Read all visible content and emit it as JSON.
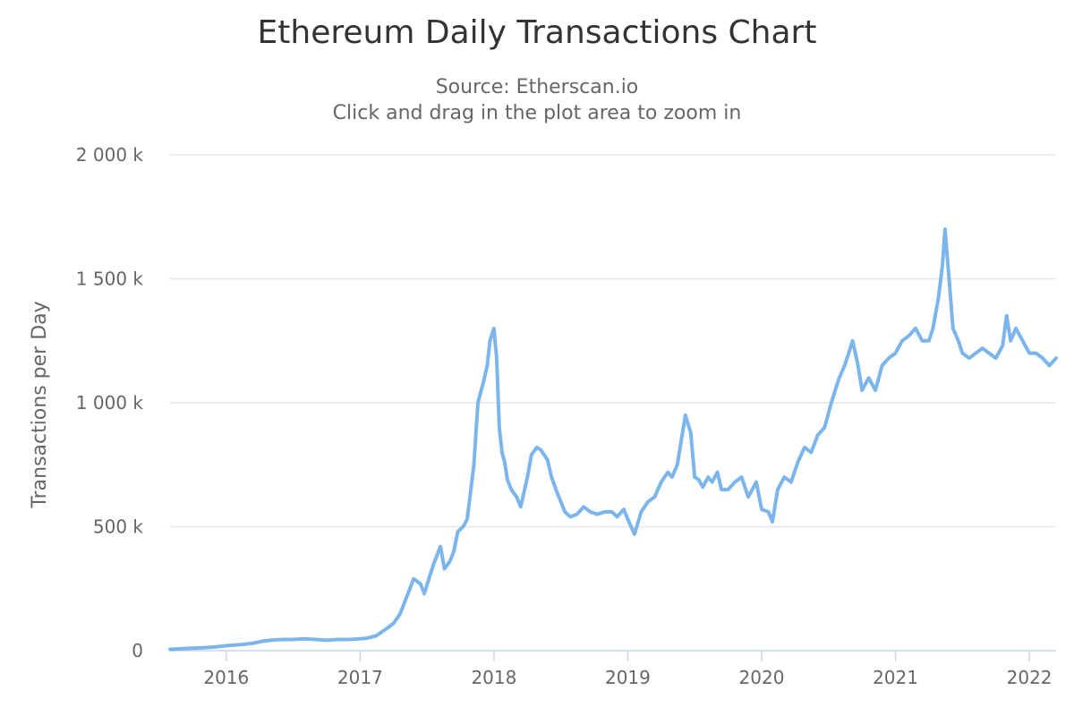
{
  "chart_data": {
    "type": "line",
    "title": "Ethereum Daily Transactions Chart",
    "subtitle_lines": [
      "Source: Etherscan.io",
      "Click and drag in the plot area to zoom in"
    ],
    "xlabel": "",
    "ylabel": "Transactions per Day",
    "xlim": [
      2015.58,
      2022.2
    ],
    "ylim": [
      0,
      2000000
    ],
    "y_ticks": [
      {
        "value": 0,
        "label": "0"
      },
      {
        "value": 500000,
        "label": "500 k"
      },
      {
        "value": 1000000,
        "label": "1 000 k"
      },
      {
        "value": 1500000,
        "label": "1 500 k"
      },
      {
        "value": 2000000,
        "label": "2 000 k"
      }
    ],
    "x_ticks": [
      {
        "value": 2016,
        "label": "2016"
      },
      {
        "value": 2017,
        "label": "2017"
      },
      {
        "value": 2018,
        "label": "2018"
      },
      {
        "value": 2019,
        "label": "2019"
      },
      {
        "value": 2020,
        "label": "2020"
      },
      {
        "value": 2021,
        "label": "2021"
      },
      {
        "value": 2022,
        "label": "2022"
      }
    ],
    "grid": true,
    "legend": "none",
    "series": [
      {
        "color": "#7cb5ec",
        "x": [
          2015.58,
          2015.67,
          2015.75,
          2015.83,
          2015.92,
          2016.0,
          2016.05,
          2016.12,
          2016.2,
          2016.27,
          2016.33,
          2016.42,
          2016.5,
          2016.58,
          2016.67,
          2016.75,
          2016.83,
          2016.92,
          2017.0,
          2017.05,
          2017.12,
          2017.2,
          2017.25,
          2017.3,
          2017.35,
          2017.4,
          2017.45,
          2017.48,
          2017.52,
          2017.55,
          2017.6,
          2017.63,
          2017.67,
          2017.7,
          2017.73,
          2017.77,
          2017.8,
          2017.85,
          2017.88,
          2017.92,
          2017.95,
          2017.97,
          2018.0,
          2018.02,
          2018.04,
          2018.06,
          2018.08,
          2018.1,
          2018.13,
          2018.17,
          2018.2,
          2018.25,
          2018.28,
          2018.32,
          2018.35,
          2018.4,
          2018.43,
          2018.47,
          2018.5,
          2018.53,
          2018.57,
          2018.62,
          2018.67,
          2018.72,
          2018.77,
          2018.83,
          2018.88,
          2018.92,
          2018.97,
          2019.0,
          2019.05,
          2019.1,
          2019.15,
          2019.2,
          2019.25,
          2019.3,
          2019.33,
          2019.37,
          2019.4,
          2019.43,
          2019.47,
          2019.5,
          2019.53,
          2019.56,
          2019.6,
          2019.63,
          2019.67,
          2019.7,
          2019.75,
          2019.8,
          2019.85,
          2019.9,
          2019.93,
          2019.96,
          2020.0,
          2020.05,
          2020.08,
          2020.12,
          2020.17,
          2020.22,
          2020.27,
          2020.32,
          2020.37,
          2020.42,
          2020.47,
          2020.52,
          2020.55,
          2020.58,
          2020.62,
          2020.65,
          2020.68,
          2020.72,
          2020.75,
          2020.8,
          2020.85,
          2020.9,
          2020.95,
          2021.0,
          2021.05,
          2021.1,
          2021.15,
          2021.2,
          2021.25,
          2021.28,
          2021.32,
          2021.35,
          2021.37,
          2021.4,
          2021.43,
          2021.47,
          2021.5,
          2021.55,
          2021.6,
          2021.65,
          2021.7,
          2021.75,
          2021.8,
          2021.83,
          2021.86,
          2021.9,
          2021.95,
          2022.0,
          2022.05,
          2022.1,
          2022.15,
          2022.2
        ],
        "y": [
          5000,
          8000,
          10000,
          12000,
          15000,
          20000,
          22000,
          25000,
          30000,
          38000,
          42000,
          45000,
          45000,
          48000,
          45000,
          42000,
          45000,
          45000,
          48000,
          50000,
          60000,
          90000,
          110000,
          150000,
          220000,
          290000,
          270000,
          230000,
          300000,
          350000,
          420000,
          330000,
          360000,
          400000,
          480000,
          500000,
          530000,
          750000,
          1000000,
          1080000,
          1150000,
          1250000,
          1300000,
          1180000,
          900000,
          800000,
          760000,
          690000,
          650000,
          620000,
          580000,
          700000,
          790000,
          820000,
          810000,
          770000,
          700000,
          640000,
          600000,
          560000,
          540000,
          550000,
          580000,
          560000,
          550000,
          560000,
          560000,
          540000,
          570000,
          530000,
          470000,
          560000,
          600000,
          620000,
          680000,
          720000,
          700000,
          750000,
          850000,
          950000,
          880000,
          700000,
          690000,
          660000,
          700000,
          680000,
          720000,
          650000,
          650000,
          680000,
          700000,
          620000,
          650000,
          680000,
          570000,
          560000,
          520000,
          650000,
          700000,
          680000,
          760000,
          820000,
          800000,
          870000,
          900000,
          1000000,
          1050000,
          1100000,
          1150000,
          1200000,
          1250000,
          1150000,
          1050000,
          1100000,
          1050000,
          1150000,
          1180000,
          1200000,
          1250000,
          1270000,
          1300000,
          1250000,
          1250000,
          1300000,
          1420000,
          1550000,
          1700000,
          1500000,
          1300000,
          1250000,
          1200000,
          1180000,
          1200000,
          1220000,
          1200000,
          1180000,
          1230000,
          1350000,
          1250000,
          1300000,
          1250000,
          1200000,
          1200000,
          1180000,
          1150000,
          1180000
        ]
      }
    ]
  }
}
